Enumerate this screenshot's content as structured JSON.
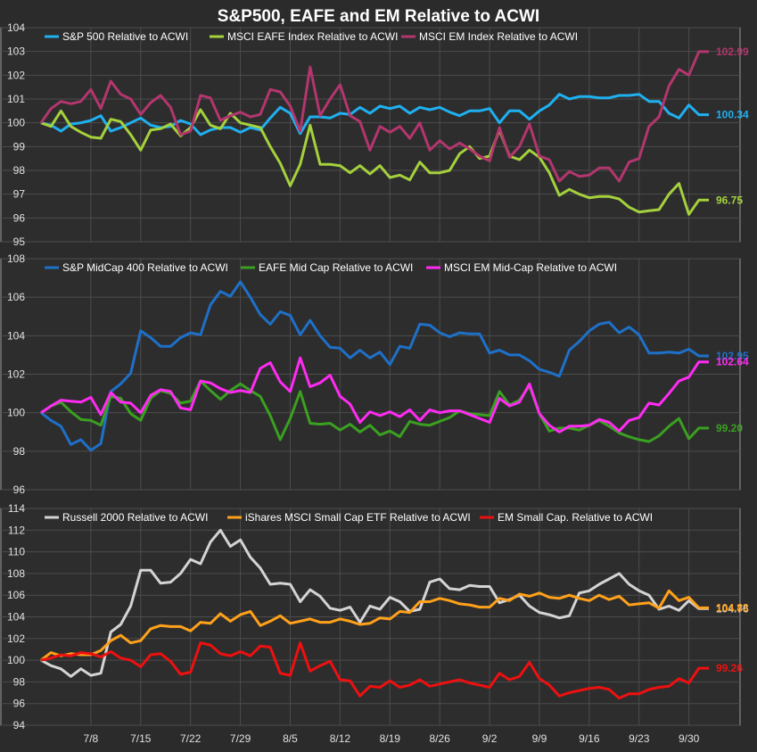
{
  "title": "S&P500, EAFE and EM Relative to ACWI",
  "colors": {
    "background": "#2b2b2b",
    "plot_bg": "#2d2d2d",
    "grid": "#4d4d4d",
    "frame": "#9a9a9a"
  },
  "x_axis": {
    "ticks": [
      {
        "label": "7/8",
        "i": 5
      },
      {
        "label": "7/15",
        "i": 10
      },
      {
        "label": "7/22",
        "i": 15
      },
      {
        "label": "7/29",
        "i": 20
      },
      {
        "label": "8/5",
        "i": 25
      },
      {
        "label": "8/12",
        "i": 30
      },
      {
        "label": "8/19",
        "i": 35
      },
      {
        "label": "8/26",
        "i": 40
      },
      {
        "label": "9/2",
        "i": 45
      },
      {
        "label": "9/9",
        "i": 50
      },
      {
        "label": "9/16",
        "i": 55
      },
      {
        "label": "9/23",
        "i": 60
      },
      {
        "label": "9/30",
        "i": 65
      }
    ]
  },
  "chart_data": [
    {
      "type": "line",
      "title": "S&P500, EAFE and EM Relative to ACWI",
      "ylim": [
        95,
        104
      ],
      "yticks": [
        95,
        96,
        97,
        98,
        99,
        100,
        101,
        102,
        103,
        104
      ],
      "grid": true,
      "legend": "top-left",
      "series": [
        {
          "name": "S&P 500 Relative to ACWI",
          "color": "#1fb0f0",
          "end_label": "100.34",
          "values": [
            100,
            99.9,
            99.65,
            99.95,
            100.0,
            100.1,
            100.3,
            99.65,
            99.8,
            100.0,
            100.2,
            99.9,
            99.8,
            99.85,
            100.1,
            99.95,
            99.5,
            99.7,
            99.8,
            99.8,
            99.6,
            99.8,
            99.7,
            100.2,
            100.65,
            100.4,
            99.55,
            100.25,
            100.25,
            100.2,
            100.4,
            100.35,
            100.65,
            100.4,
            100.7,
            100.6,
            100.7,
            100.4,
            100.65,
            100.55,
            100.65,
            100.45,
            100.3,
            100.5,
            100.5,
            100.6,
            100.0,
            100.5,
            100.5,
            100.15,
            100.5,
            100.75,
            101.2,
            101.0,
            101.1,
            101.1,
            101.05,
            101.05,
            101.15,
            101.15,
            101.2,
            100.9,
            100.9,
            100.4,
            100.2,
            100.75,
            100.34,
            100.34
          ]
        },
        {
          "name": "MSCI EAFE Index Relative to ACWI",
          "color": "#a5d13c",
          "end_label": "96.75",
          "values": [
            100,
            99.85,
            100.5,
            99.85,
            99.6,
            99.4,
            99.35,
            100.15,
            100.05,
            99.5,
            98.85,
            99.7,
            99.75,
            99.95,
            99.45,
            99.8,
            100.55,
            99.9,
            99.75,
            100.4,
            100.0,
            99.9,
            99.8,
            99.0,
            98.3,
            97.35,
            98.25,
            99.9,
            98.25,
            98.25,
            98.2,
            97.9,
            98.2,
            97.85,
            98.2,
            97.7,
            97.8,
            97.6,
            98.35,
            97.9,
            97.9,
            98.0,
            98.7,
            99.0,
            98.5,
            98.6,
            99.7,
            98.6,
            98.45,
            98.85,
            98.55,
            97.9,
            96.95,
            97.2,
            97.0,
            96.85,
            96.9,
            96.9,
            96.8,
            96.45,
            96.25,
            96.3,
            96.35,
            97.0,
            97.45,
            96.15,
            96.75,
            96.75
          ]
        },
        {
          "name": "MSCI EM Index Relative to ACWI",
          "color": "#b3366e",
          "end_label": "102.99",
          "values": [
            100,
            100.6,
            100.9,
            100.8,
            100.9,
            101.4,
            100.6,
            101.75,
            101.2,
            101.0,
            100.35,
            100.85,
            101.15,
            100.65,
            99.5,
            99.65,
            101.15,
            101.05,
            100.1,
            100.3,
            100.45,
            100.25,
            100.35,
            101.4,
            101.3,
            100.7,
            99.65,
            102.35,
            100.3,
            101.0,
            101.6,
            100.3,
            100.05,
            98.85,
            99.85,
            99.6,
            99.85,
            99.35,
            100.0,
            98.85,
            99.25,
            98.9,
            99.15,
            98.9,
            98.6,
            98.4,
            99.8,
            98.55,
            99.0,
            99.95,
            98.6,
            98.45,
            97.55,
            97.95,
            97.75,
            97.8,
            98.1,
            98.1,
            97.55,
            98.35,
            98.5,
            99.85,
            100.25,
            101.55,
            102.25,
            102.0,
            102.99,
            102.99
          ]
        }
      ]
    },
    {
      "type": "line",
      "ylim": [
        96,
        108
      ],
      "yticks": [
        96,
        98,
        100,
        102,
        104,
        106,
        108
      ],
      "grid": true,
      "legend": "top-left",
      "series": [
        {
          "name": "S&P MidCap 400 Relative to ACWI",
          "color": "#1e70c8",
          "end_label": "102.95",
          "values": [
            100,
            99.6,
            99.3,
            98.35,
            98.6,
            98.05,
            98.4,
            101.1,
            101.5,
            102.05,
            104.25,
            103.9,
            103.45,
            103.45,
            103.9,
            104.15,
            104.05,
            105.6,
            106.3,
            106.05,
            106.8,
            106.0,
            105.1,
            104.6,
            105.25,
            105.05,
            104.05,
            104.8,
            104.0,
            103.4,
            103.35,
            102.85,
            103.25,
            102.85,
            103.15,
            102.5,
            103.45,
            103.35,
            104.6,
            104.55,
            104.15,
            103.95,
            104.15,
            104.1,
            104.1,
            103.1,
            103.25,
            103.0,
            103.0,
            102.7,
            102.25,
            102.1,
            101.9,
            103.25,
            103.7,
            104.25,
            104.6,
            104.7,
            104.15,
            104.45,
            104.05,
            103.1,
            103.1,
            103.15,
            103.1,
            103.3,
            102.95,
            102.95
          ]
        },
        {
          "name": "EAFE Mid Cap Relative to ACWI",
          "color": "#3aa020",
          "end_label": "99.20",
          "values": [
            100,
            100.35,
            100.55,
            100.05,
            99.65,
            99.6,
            99.35,
            100.85,
            100.75,
            99.95,
            99.6,
            100.75,
            101.15,
            101.0,
            100.5,
            100.6,
            101.65,
            101.15,
            100.7,
            101.15,
            101.5,
            101.15,
            100.85,
            99.85,
            98.6,
            99.7,
            101.1,
            99.45,
            99.4,
            99.45,
            99.1,
            99.4,
            99.0,
            99.35,
            98.85,
            99.05,
            98.75,
            99.55,
            99.4,
            99.35,
            99.55,
            99.75,
            100.1,
            99.95,
            99.9,
            99.85,
            101.1,
            100.4,
            100.65,
            101.4,
            99.95,
            99.05,
            99.2,
            99.2,
            99.1,
            99.35,
            99.6,
            99.3,
            98.95,
            98.75,
            98.6,
            98.5,
            98.8,
            99.3,
            99.7,
            98.65,
            99.2,
            99.2
          ]
        },
        {
          "name": "MSCI EM Mid-Cap Relative to ACWI",
          "color": "#ff2bf2",
          "end_label": "102.64",
          "values": [
            100,
            100.35,
            100.65,
            100.6,
            100.55,
            100.8,
            99.9,
            101.05,
            100.55,
            100.5,
            100.0,
            100.9,
            101.2,
            101.1,
            100.25,
            100.15,
            101.65,
            101.55,
            101.25,
            101.05,
            101.15,
            101.05,
            102.3,
            102.6,
            101.6,
            101.1,
            102.85,
            101.35,
            101.55,
            101.95,
            100.85,
            100.45,
            99.5,
            100.05,
            99.85,
            100.05,
            99.8,
            100.15,
            99.6,
            100.15,
            100.0,
            100.1,
            100.1,
            99.9,
            99.7,
            99.5,
            100.75,
            100.35,
            100.55,
            101.5,
            99.95,
            99.35,
            99.0,
            99.3,
            99.3,
            99.35,
            99.65,
            99.5,
            99.05,
            99.6,
            99.75,
            100.5,
            100.4,
            101.0,
            101.65,
            101.85,
            102.64,
            102.64
          ]
        }
      ]
    },
    {
      "type": "line",
      "ylim": [
        94,
        114
      ],
      "yticks": [
        94,
        96,
        98,
        100,
        102,
        104,
        106,
        108,
        110,
        112,
        114
      ],
      "grid": true,
      "legend": "top-left",
      "series": [
        {
          "name": "Russell 2000 Relative to ACWI",
          "color": "#d4d4d4",
          "end_label": "104.76",
          "values": [
            100,
            99.5,
            99.2,
            98.5,
            99.2,
            98.6,
            98.8,
            102.6,
            103.3,
            105.0,
            108.3,
            108.3,
            107.1,
            107.2,
            108.0,
            109.3,
            108.9,
            110.9,
            112.0,
            110.5,
            111.1,
            109.5,
            108.5,
            107.0,
            107.1,
            107.0,
            105.4,
            106.5,
            105.9,
            104.8,
            104.6,
            104.9,
            103.5,
            105.0,
            104.7,
            105.8,
            105.4,
            104.5,
            104.7,
            107.2,
            107.5,
            106.6,
            106.5,
            106.9,
            106.8,
            106.8,
            105.3,
            105.6,
            106.0,
            105.0,
            104.4,
            104.2,
            103.9,
            104.1,
            106.2,
            106.4,
            107.0,
            107.5,
            108.0,
            107.0,
            106.4,
            106.0,
            104.7,
            105.0,
            104.6,
            105.5,
            104.76,
            104.76
          ]
        },
        {
          "name": "iShares MSCI Small Cap ETF Relative to ACWI",
          "color": "#ffa11a",
          "end_label": "104.83",
          "values": [
            100,
            100.7,
            100.4,
            100.6,
            100.5,
            100.5,
            100.9,
            101.8,
            102.3,
            101.6,
            101.8,
            102.9,
            103.2,
            103.1,
            103.1,
            102.7,
            103.5,
            103.4,
            104.3,
            103.6,
            104.2,
            104.5,
            103.2,
            103.6,
            104.1,
            103.4,
            103.6,
            103.8,
            103.5,
            103.5,
            103.8,
            103.6,
            103.3,
            103.4,
            103.9,
            103.8,
            104.5,
            104.4,
            105.4,
            105.4,
            105.7,
            105.5,
            105.2,
            105.1,
            104.9,
            104.9,
            105.7,
            105.5,
            106.1,
            105.9,
            106.2,
            105.8,
            105.7,
            106.0,
            105.7,
            105.5,
            106.0,
            105.6,
            105.9,
            105.1,
            105.2,
            105.3,
            104.8,
            106.4,
            105.5,
            105.8,
            104.83,
            104.83
          ]
        },
        {
          "name": "EM Small Cap. Relative to ACWI",
          "color": "#ee1010",
          "end_label": "99.26",
          "values": [
            100,
            100.2,
            100.5,
            100.4,
            100.7,
            100.6,
            100.3,
            100.8,
            100.2,
            100.0,
            99.4,
            100.5,
            100.6,
            99.9,
            98.7,
            98.9,
            101.6,
            101.4,
            100.6,
            100.4,
            100.8,
            100.4,
            101.3,
            101.2,
            98.8,
            98.6,
            101.6,
            99.0,
            99.5,
            99.9,
            98.2,
            98.1,
            96.7,
            97.6,
            97.5,
            98.1,
            97.5,
            97.7,
            98.2,
            97.6,
            97.8,
            98.0,
            98.2,
            97.9,
            97.7,
            97.5,
            98.8,
            98.2,
            98.5,
            99.8,
            98.3,
            97.7,
            96.7,
            97.0,
            97.2,
            97.4,
            97.5,
            97.3,
            96.5,
            96.9,
            96.9,
            97.3,
            97.5,
            97.6,
            98.3,
            97.9,
            99.26,
            99.26
          ]
        }
      ]
    }
  ]
}
